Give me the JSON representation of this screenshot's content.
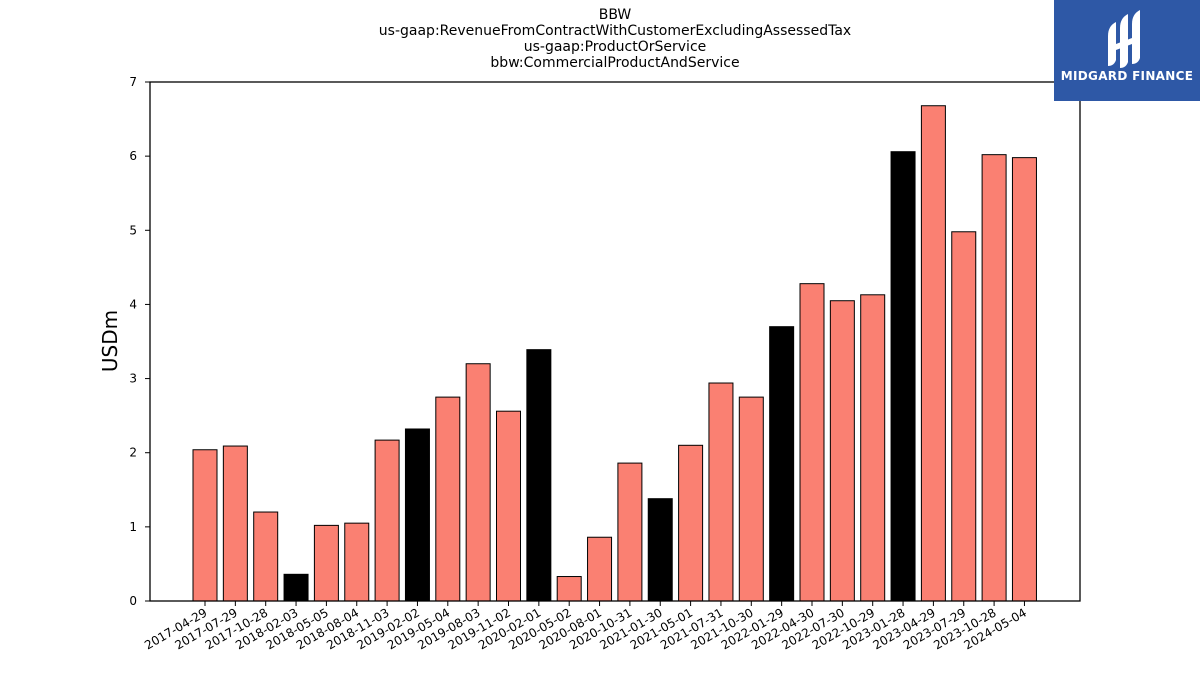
{
  "chart_data": {
    "type": "bar",
    "title_lines": [
      "BBW",
      "us-gaap:RevenueFromContractWithCustomerExcludingAssessedTax",
      "us-gaap:ProductOrService",
      "bbw:CommercialProductAndService"
    ],
    "ylabel": "USDm",
    "xlabel": "",
    "ylim": [
      0,
      7
    ],
    "yticks": [
      0,
      1,
      2,
      3,
      4,
      5,
      6,
      7
    ],
    "categories": [
      "2017-04-29",
      "2017-07-29",
      "2017-10-28",
      "2018-02-03",
      "2018-05-05",
      "2018-08-04",
      "2018-11-03",
      "2019-02-02",
      "2019-05-04",
      "2019-08-03",
      "2019-11-02",
      "2020-02-01",
      "2020-05-02",
      "2020-08-01",
      "2020-10-31",
      "2021-01-30",
      "2021-05-01",
      "2021-07-31",
      "2021-10-30",
      "2022-01-29",
      "2022-04-30",
      "2022-07-30",
      "2022-10-29",
      "2023-01-28",
      "2023-04-29",
      "2023-07-29",
      "2023-10-28",
      "2024-05-04"
    ],
    "values": [
      2.04,
      2.09,
      1.2,
      0.36,
      1.02,
      1.05,
      2.17,
      2.32,
      2.75,
      3.2,
      2.56,
      3.39,
      0.33,
      0.86,
      1.86,
      1.38,
      2.1,
      2.94,
      2.75,
      3.7,
      4.28,
      4.05,
      4.13,
      6.06,
      6.68,
      4.98,
      6.02,
      5.98
    ],
    "highlighted": [
      false,
      false,
      false,
      true,
      false,
      false,
      false,
      true,
      false,
      false,
      false,
      true,
      false,
      false,
      false,
      true,
      false,
      false,
      false,
      true,
      false,
      false,
      false,
      true,
      false,
      false,
      false,
      false
    ],
    "colors": {
      "bar": "#fa8072",
      "highlight": "#000000",
      "edge": "#000000"
    },
    "grid": false
  },
  "logo": {
    "name": "MIDGARD FINANCE"
  }
}
